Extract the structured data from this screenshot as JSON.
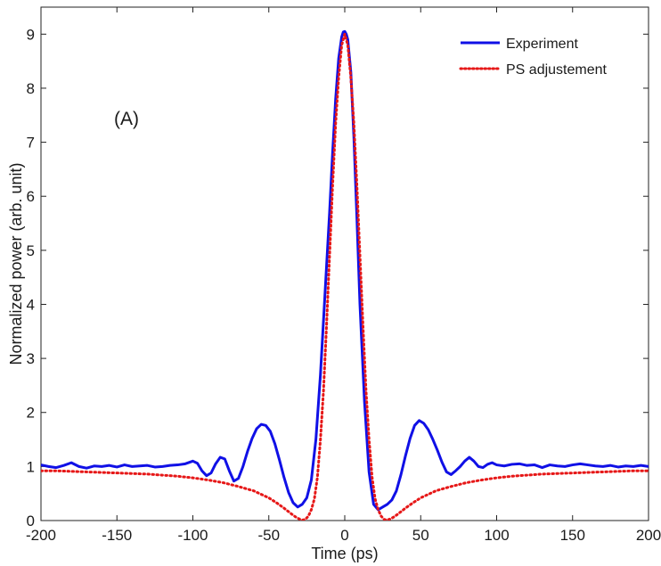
{
  "chart_data": {
    "type": "line",
    "panel_label": "(A)",
    "xlabel": "Time (ps)",
    "ylabel": "Normalized power (arb. unit)",
    "xlim": [
      -200,
      200
    ],
    "ylim": [
      0,
      9.5
    ],
    "xticks": [
      -200,
      -150,
      -100,
      -50,
      0,
      50,
      100,
      150,
      200
    ],
    "yticks": [
      0,
      1,
      2,
      3,
      4,
      5,
      6,
      7,
      8,
      9
    ],
    "grid": false,
    "legend_position": "top-right",
    "series": [
      {
        "name": "Experiment",
        "color": "#1010e6",
        "style": "solid",
        "x": [
          -200,
          -195,
          -190,
          -185,
          -180,
          -175,
          -170,
          -165,
          -160,
          -155,
          -150,
          -145,
          -140,
          -135,
          -130,
          -125,
          -120,
          -115,
          -110,
          -105,
          -100,
          -97,
          -94,
          -91,
          -88,
          -85,
          -82,
          -79,
          -76,
          -73,
          -70,
          -67,
          -64,
          -61,
          -58,
          -55,
          -52,
          -49,
          -46,
          -43,
          -40,
          -37,
          -34,
          -31,
          -28,
          -25,
          -22,
          -19,
          -16,
          -13,
          -10,
          -8,
          -6,
          -4,
          -2,
          -1,
          0,
          1,
          2,
          4,
          6,
          8,
          10,
          13,
          16,
          19,
          22,
          25,
          28,
          31,
          34,
          37,
          40,
          43,
          46,
          49,
          52,
          55,
          58,
          61,
          64,
          67,
          70,
          73,
          76,
          79,
          82,
          85,
          88,
          91,
          94,
          97,
          100,
          105,
          110,
          115,
          120,
          125,
          130,
          135,
          140,
          145,
          150,
          155,
          160,
          165,
          170,
          175,
          180,
          185,
          190,
          195,
          200
        ],
        "y": [
          1.03,
          1.0,
          0.98,
          1.02,
          1.07,
          1.0,
          0.97,
          1.01,
          1.0,
          1.02,
          0.99,
          1.03,
          1.0,
          1.01,
          1.02,
          0.99,
          1.0,
          1.02,
          1.03,
          1.05,
          1.1,
          1.06,
          0.92,
          0.83,
          0.88,
          1.05,
          1.17,
          1.14,
          0.92,
          0.73,
          0.78,
          1.0,
          1.28,
          1.52,
          1.7,
          1.78,
          1.76,
          1.65,
          1.42,
          1.12,
          0.8,
          0.52,
          0.33,
          0.25,
          0.3,
          0.42,
          0.75,
          1.5,
          2.7,
          4.2,
          5.7,
          6.8,
          7.8,
          8.55,
          8.95,
          9.04,
          9.05,
          9.0,
          8.9,
          8.3,
          7.1,
          5.6,
          4.0,
          2.2,
          0.9,
          0.3,
          0.2,
          0.25,
          0.3,
          0.38,
          0.55,
          0.85,
          1.2,
          1.52,
          1.76,
          1.85,
          1.8,
          1.68,
          1.5,
          1.3,
          1.08,
          0.9,
          0.85,
          0.92,
          1.0,
          1.1,
          1.17,
          1.1,
          1.0,
          0.98,
          1.04,
          1.07,
          1.03,
          1.01,
          1.04,
          1.05,
          1.02,
          1.03,
          0.98,
          1.03,
          1.01,
          1.0,
          1.03,
          1.05,
          1.03,
          1.01,
          1.0,
          1.02,
          0.99,
          1.01,
          1.0,
          1.02,
          1.0
        ]
      },
      {
        "name": "PS adjustement",
        "color": "#e61717",
        "style": "dotted",
        "x": [
          -200,
          -190,
          -180,
          -170,
          -160,
          -150,
          -140,
          -130,
          -120,
          -110,
          -100,
          -90,
          -80,
          -70,
          -60,
          -50,
          -45,
          -40,
          -35,
          -32,
          -30,
          -28,
          -26,
          -24,
          -22,
          -20,
          -18,
          -16,
          -14,
          -12,
          -10,
          -8,
          -6,
          -4,
          -2,
          0,
          2,
          4,
          6,
          8,
          10,
          12,
          14,
          16,
          18,
          20,
          22,
          24,
          26,
          28,
          30,
          32,
          35,
          40,
          45,
          50,
          60,
          70,
          80,
          90,
          100,
          110,
          120,
          130,
          140,
          150,
          160,
          170,
          180,
          190,
          200
        ],
        "y": [
          0.92,
          0.92,
          0.91,
          0.9,
          0.89,
          0.88,
          0.87,
          0.86,
          0.84,
          0.82,
          0.79,
          0.75,
          0.7,
          0.63,
          0.55,
          0.42,
          0.33,
          0.23,
          0.12,
          0.06,
          0.03,
          0.01,
          0.02,
          0.08,
          0.2,
          0.4,
          0.8,
          1.5,
          2.4,
          3.6,
          4.9,
          6.2,
          7.35,
          8.2,
          8.8,
          9.0,
          8.8,
          8.2,
          7.35,
          6.2,
          4.9,
          3.6,
          2.4,
          1.5,
          0.8,
          0.4,
          0.2,
          0.08,
          0.02,
          0.01,
          0.03,
          0.06,
          0.12,
          0.23,
          0.33,
          0.42,
          0.55,
          0.63,
          0.7,
          0.75,
          0.79,
          0.82,
          0.84,
          0.86,
          0.87,
          0.88,
          0.89,
          0.9,
          0.91,
          0.92,
          0.92
        ]
      }
    ]
  }
}
